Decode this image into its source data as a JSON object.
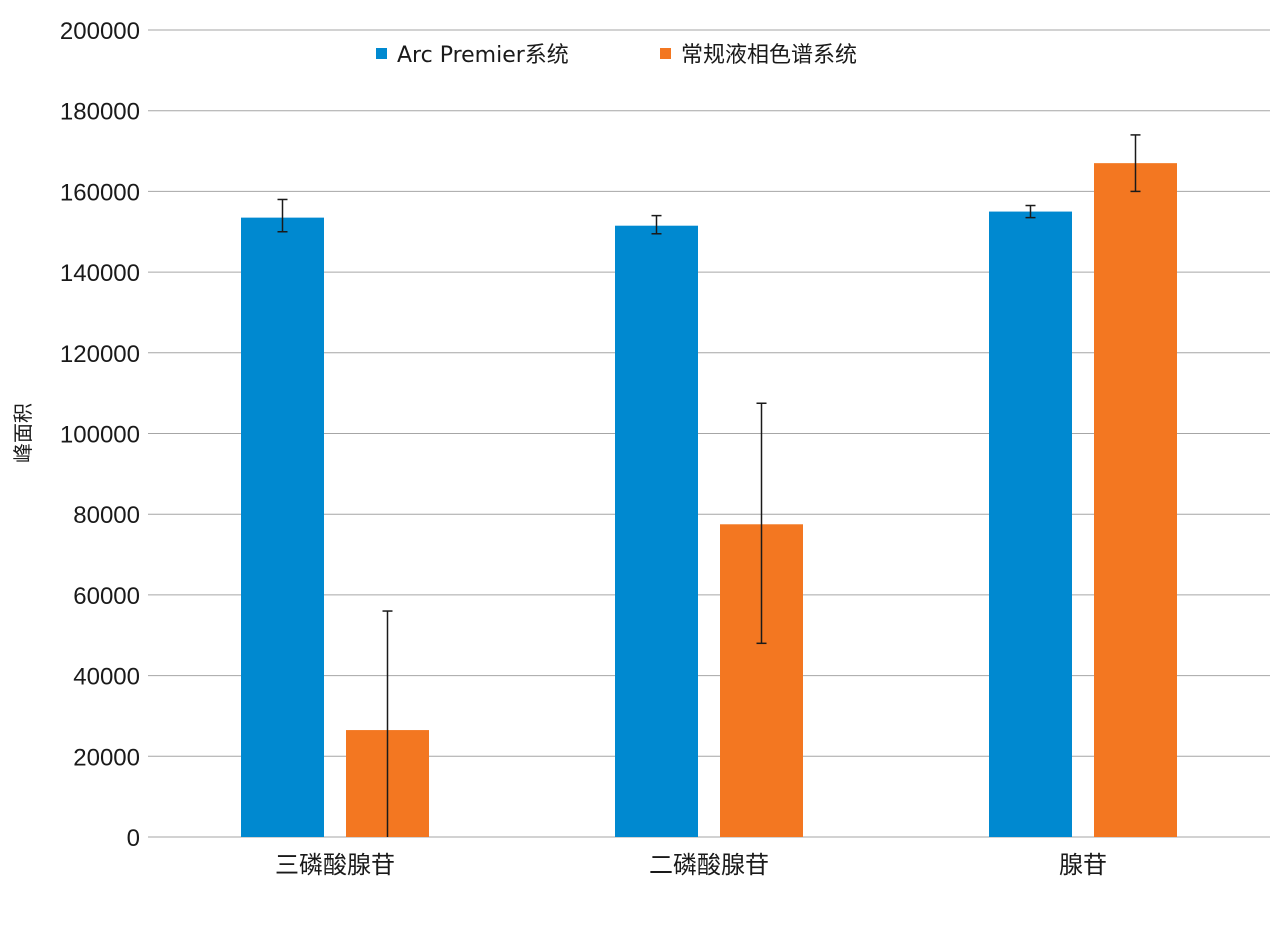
{
  "chart_data": {
    "type": "bar",
    "ylabel": "峰面积",
    "xlabel": "",
    "ylim": [
      0,
      200000
    ],
    "ytick_step": 20000,
    "grid": true,
    "legend_position": "top",
    "categories": [
      "三磷酸腺苷",
      "二磷酸腺苷",
      "腺苷"
    ],
    "series": [
      {
        "name": "Arc Premier系统",
        "color": "#0089d0",
        "values": [
          153500,
          151500,
          155000
        ],
        "error_low": [
          150000,
          149500,
          153500
        ],
        "error_high": [
          158000,
          154000,
          156500
        ]
      },
      {
        "name": "常规液相色谱系统",
        "color": "#f37721",
        "values": [
          26500,
          77500,
          167000
        ],
        "error_low": [
          0,
          48000,
          160000
        ],
        "error_high": [
          56000,
          107500,
          174000
        ]
      }
    ]
  }
}
